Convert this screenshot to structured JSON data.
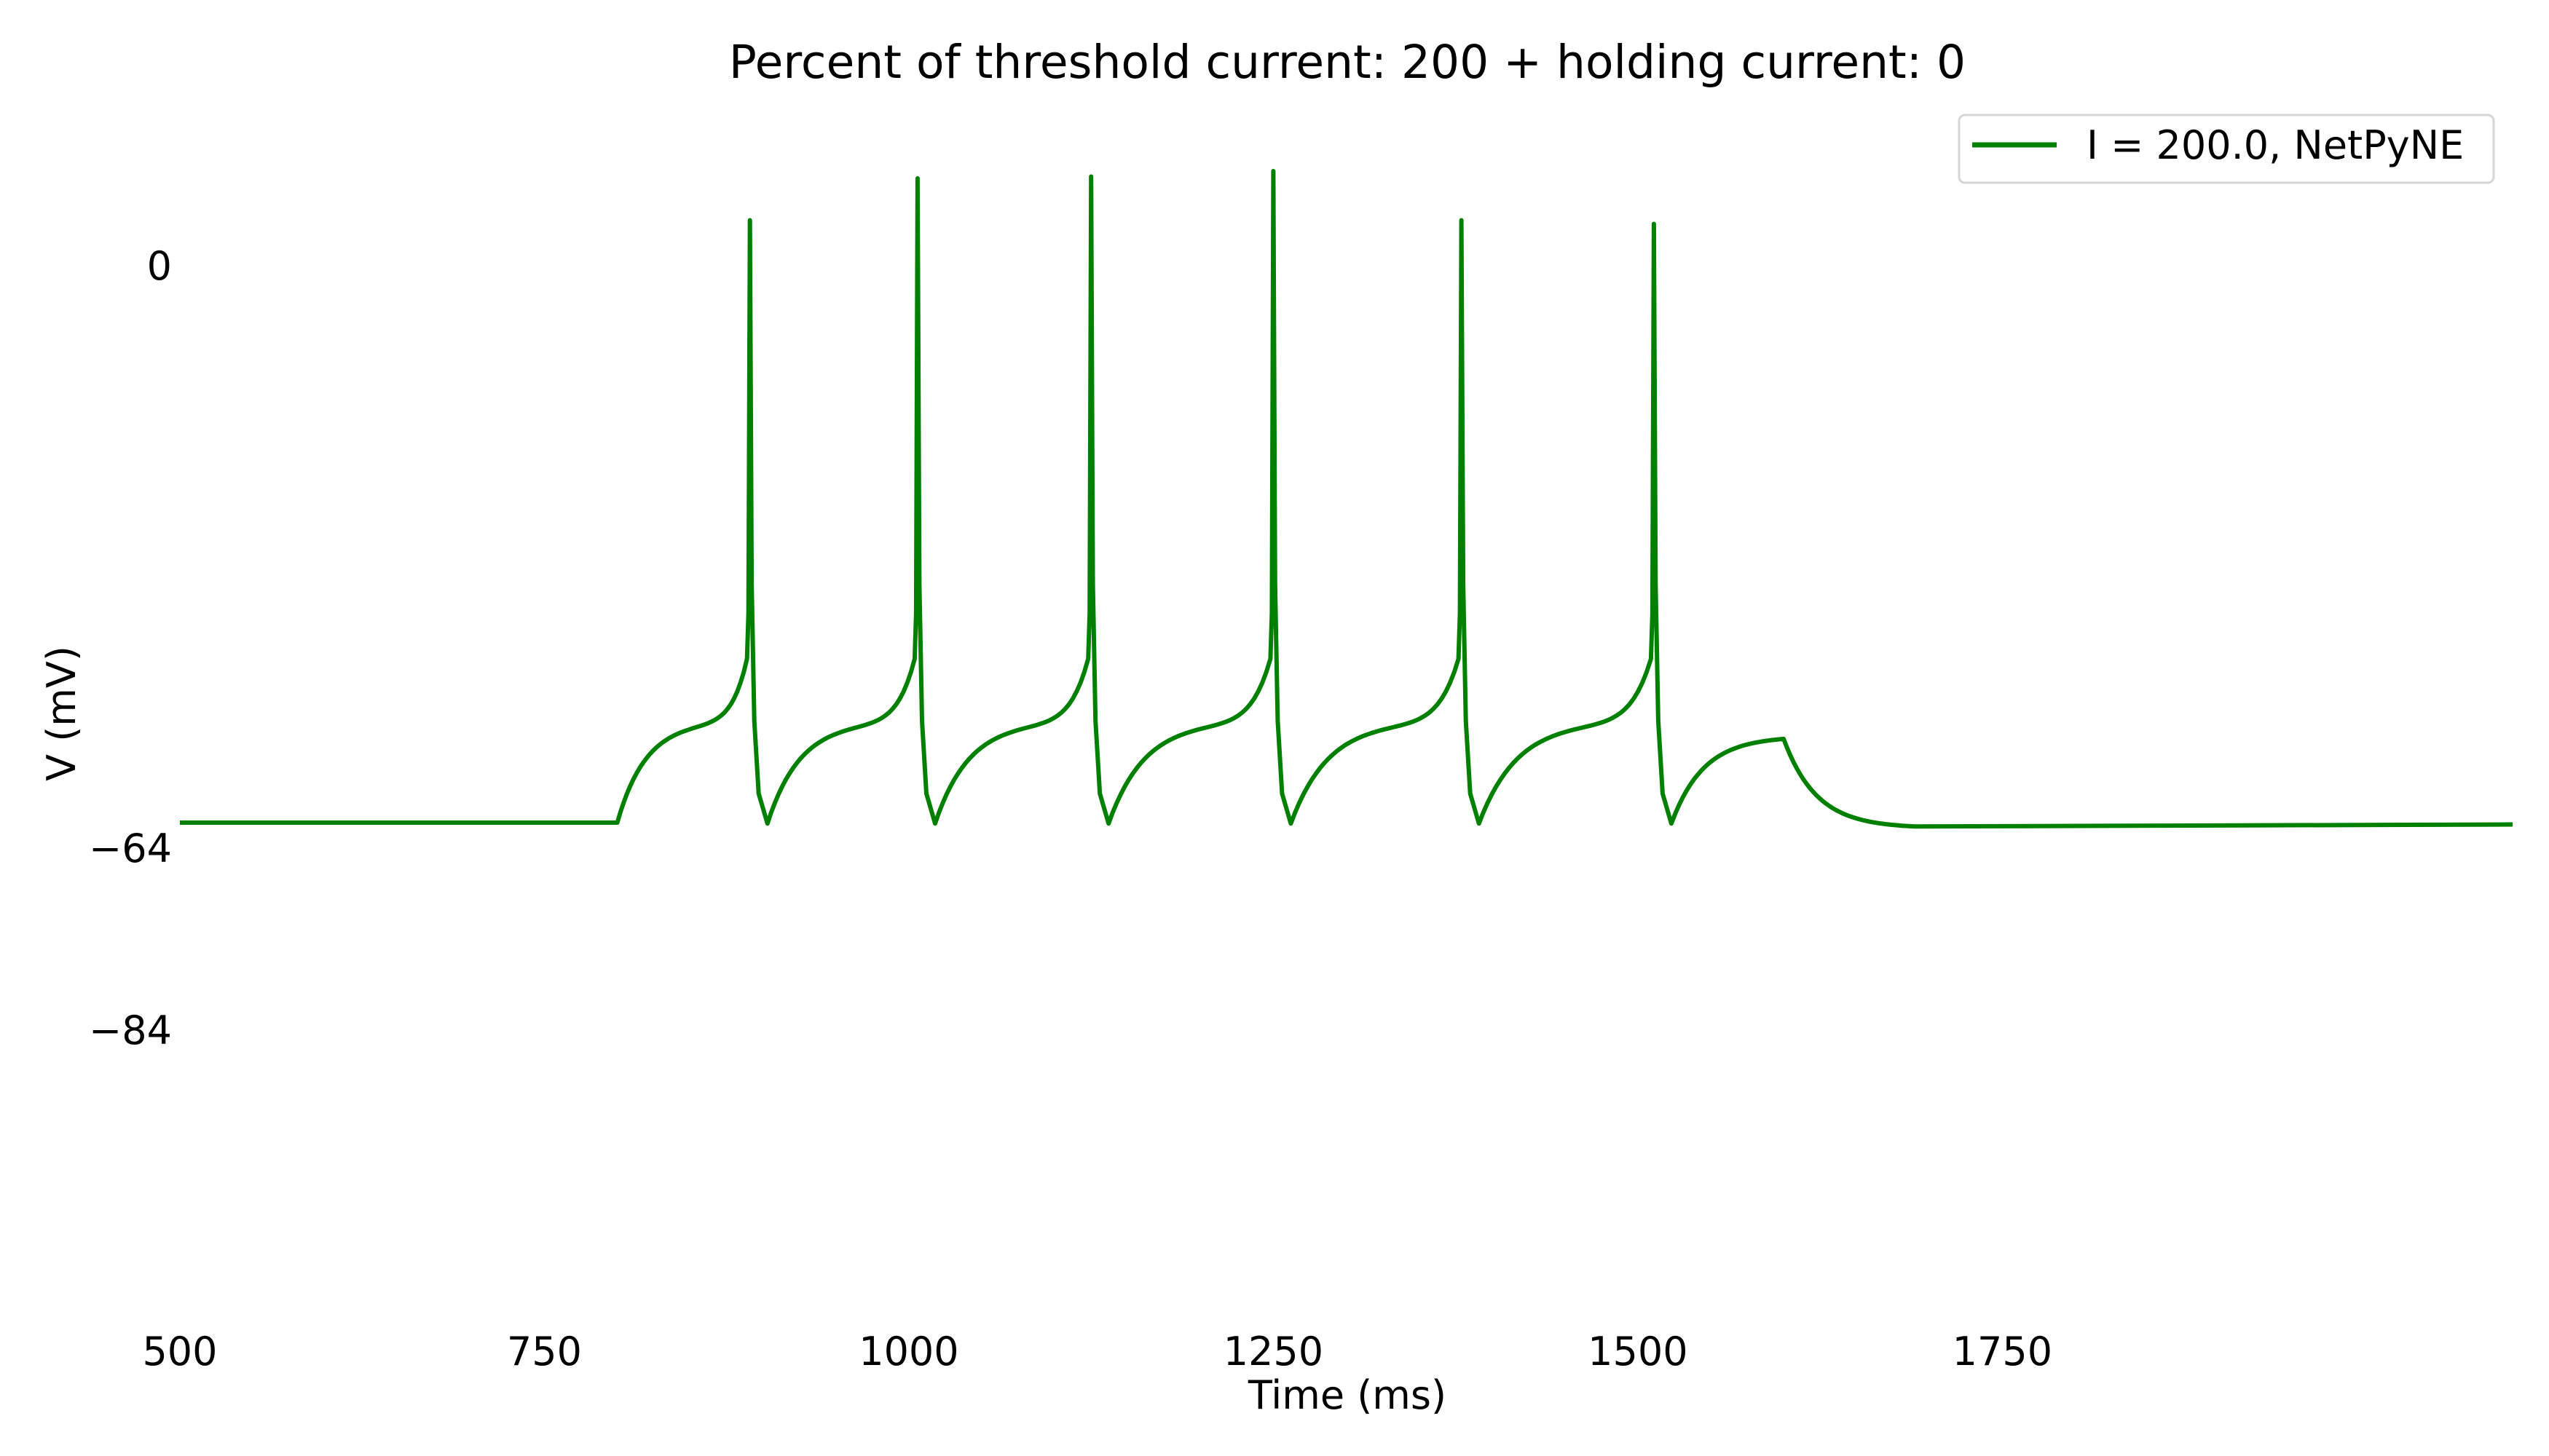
{
  "chart_data": {
    "type": "line",
    "title": "Percent of threshold current: 200 + holding current: 0",
    "xlabel": "Time (ms)",
    "ylabel": "V (mV)",
    "xlim": [
      500,
      2100
    ],
    "ylim": [
      -110,
      16
    ],
    "xticks": [
      500,
      750,
      1000,
      1250,
      1500,
      1750
    ],
    "yticks": [
      0,
      -64,
      -84
    ],
    "ytick_labels": [
      "0",
      "−64",
      "−84"
    ],
    "grid": false,
    "legend_position": "top-right",
    "line_color": "#008000",
    "series": [
      {
        "name": "I = 200.0, NetPyNE",
        "color": "#008000",
        "baseline_mv": -61.2,
        "stim_start_ms": 800,
        "stim_end_ms": 1600,
        "spike_times_ms": [
          891,
          1006,
          1125,
          1250,
          1379,
          1511
        ],
        "spike_peaks_mv": [
          5.0,
          9.6,
          9.8,
          10.4,
          5.0,
          4.6
        ],
        "trough_mv": -61.3,
        "prespike_ramp_mv": -50.2,
        "end_of_stim_mv": -52.0,
        "post_stim_min_mv": -61.8,
        "final_mv": -61.4
      }
    ]
  }
}
